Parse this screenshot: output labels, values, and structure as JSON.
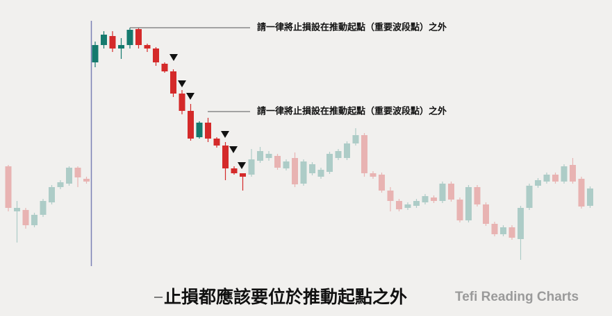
{
  "chart_data": {
    "type": "candlestick",
    "up_color": "#157a6e",
    "down_color": "#d42a2a",
    "open": [
      160,
      95,
      97,
      75,
      90,
      108,
      130,
      135,
      158,
      142,
      310,
      335,
      348,
      330,
      335,
      358,
      335,
      330,
      308,
      297,
      265,
      240,
      202,
      223,
      200,
      190,
      157,
      150,
      148,
      168,
      172,
      175,
      157,
      172,
      135,
      150,
      145,
      152,
      172,
      172,
      193,
      205,
      150,
      148,
      125,
      110,
      100,
      103,
      108,
      115,
      110,
      135,
      112,
      82,
      130,
      105,
      77,
      62,
      72,
      55,
      100,
      132,
      138,
      148,
      138,
      162,
      142,
      103
    ],
    "high": [
      162,
      110,
      100,
      93,
      113,
      133,
      140,
      160,
      160,
      145,
      340,
      355,
      355,
      345,
      360,
      360,
      337,
      332,
      310,
      300,
      270,
      250,
      225,
      230,
      202,
      195,
      160,
      150,
      185,
      188,
      182,
      178,
      170,
      180,
      170,
      166,
      158,
      181,
      185,
      196,
      215,
      208,
      153,
      151,
      130,
      113,
      108,
      113,
      120,
      118,
      138,
      138,
      115,
      133,
      133,
      108,
      80,
      75,
      75,
      103,
      135,
      143,
      151,
      151,
      163,
      172,
      145,
      131
    ],
    "low": [
      95,
      50,
      70,
      72,
      87,
      105,
      127,
      132,
      130,
      135,
      303,
      330,
      325,
      315,
      330,
      330,
      325,
      305,
      295,
      260,
      235,
      197,
      200,
      195,
      187,
      140,
      148,
      125,
      145,
      165,
      168,
      155,
      154,
      130,
      132,
      147,
      142,
      149,
      169,
      169,
      190,
      145,
      142,
      122,
      95,
      95,
      97,
      100,
      105,
      107,
      107,
      109,
      79,
      79,
      102,
      74,
      59,
      59,
      54,
      25,
      97,
      129,
      135,
      135,
      135,
      135,
      99,
      100
    ],
    "close": [
      100,
      100,
      75,
      90,
      110,
      130,
      137,
      158,
      144,
      138,
      335,
      350,
      330,
      335,
      357,
      335,
      330,
      310,
      297,
      265,
      240,
      200,
      223,
      200,
      190,
      157,
      150,
      145,
      170,
      182,
      178,
      158,
      167,
      134,
      167,
      163,
      155,
      178,
      182,
      193,
      205,
      150,
      145,
      125,
      110,
      98,
      105,
      110,
      117,
      110,
      135,
      112,
      82,
      130,
      105,
      77,
      62,
      72,
      57,
      100,
      132,
      140,
      148,
      138,
      160,
      138,
      102,
      128
    ],
    "annotations": [
      "請一律將止損設在推動起點（重要波段點）之外",
      "請一律將止損設在推動起點（重要波段點）之外"
    ],
    "subtitle": "止損都應該要位於推動起點之外",
    "source": "Tefi Reading Charts"
  }
}
